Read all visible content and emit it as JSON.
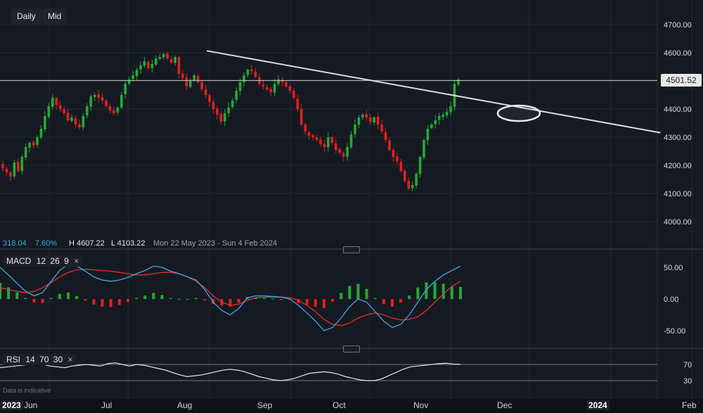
{
  "toolbar": {
    "timeframe": "Daily",
    "price_type": "Mid"
  },
  "price_axis": {
    "ticks": [
      "4700.00",
      "4600.00",
      "4500.00",
      "4400.00",
      "4300.00",
      "4200.00",
      "4100.00",
      "4000.00"
    ],
    "current_price": "4501.52"
  },
  "info_bar": {
    "value1": "318.04",
    "value2": "7.60%",
    "high": "H 4607.22",
    "low": "L 4103.22",
    "range": "Mon 22 May 2023 - Sun 4 Feb 2024"
  },
  "macd": {
    "label": "MACD",
    "params": [
      "12",
      "26",
      "9"
    ],
    "close": "×",
    "ticks": [
      "50.00",
      "0.00",
      "-50.00"
    ]
  },
  "rsi": {
    "label": "RSI",
    "params": [
      "14",
      "70",
      "30"
    ],
    "close": "×",
    "ticks": [
      "70",
      "30"
    ]
  },
  "disclaimer": "Data is indicative",
  "x_axis": {
    "labels": [
      "2023",
      "Jun",
      "Jul",
      "Aug",
      "Sep",
      "Oct",
      "Nov",
      "Dec",
      "2024",
      "Feb"
    ]
  },
  "colors": {
    "up": "#23a936",
    "down": "#e02020",
    "macd_line": "#3ba8e6",
    "signal_line": "#e03030",
    "trendline": "#d9d9d9",
    "background": "#151a22"
  },
  "chart_data": {
    "type": "candlestick",
    "x_range": [
      "2023-05-22",
      "2024-02-04"
    ],
    "y_range": [
      3950,
      4750
    ],
    "price_high": 4607.22,
    "price_low": 4103.22,
    "last_price": 4501.52,
    "closes": [
      4190,
      4175,
      4160,
      4210,
      4180,
      4230,
      4265,
      4280,
      4270,
      4300,
      4330,
      4375,
      4410,
      4440,
      4415,
      4400,
      4385,
      4360,
      4370,
      4345,
      4335,
      4375,
      4410,
      4445,
      4450,
      4440,
      4430,
      4410,
      4395,
      4385,
      4405,
      4450,
      4490,
      4505,
      4520,
      4540,
      4555,
      4570,
      4545,
      4560,
      4580,
      4585,
      4595,
      4580,
      4565,
      4585,
      4525,
      4510,
      4480,
      4500,
      4520,
      4495,
      4470,
      4450,
      4425,
      4400,
      4380,
      4355,
      4385,
      4405,
      4430,
      4465,
      4495,
      4520,
      4540,
      4535,
      4515,
      4490,
      4480,
      4470,
      4460,
      4490,
      4505,
      4495,
      4480,
      4465,
      4440,
      4400,
      4345,
      4320,
      4305,
      4300,
      4290,
      4275,
      4265,
      4300,
      4280,
      4255,
      4245,
      4230,
      4265,
      4310,
      4345,
      4370,
      4380,
      4370,
      4355,
      4370,
      4345,
      4320,
      4290,
      4255,
      4230,
      4215,
      4180,
      4145,
      4118,
      4130,
      4170,
      4230,
      4290,
      4330,
      4345,
      4360,
      4375,
      4380,
      4390,
      4410,
      4490,
      4505
    ],
    "trendline": {
      "start": [
        "2023-07-31",
        4607
      ],
      "end": [
        "2024-01-20",
        4316
      ]
    },
    "highlight_ellipse": {
      "center": [
        "2023-11-27",
        4385
      ]
    },
    "macd_series": {
      "macd": [
        50,
        38,
        25,
        12,
        5,
        10,
        28,
        45,
        55,
        52,
        44,
        35,
        30,
        28,
        30,
        34,
        40,
        45,
        52,
        50,
        44,
        40,
        35,
        30,
        15,
        -5,
        -18,
        -25,
        -15,
        2,
        5,
        5,
        4,
        3,
        0,
        -10,
        -22,
        -35,
        -50,
        -45,
        -30,
        -12,
        0,
        -5,
        -20,
        -35,
        -45,
        -40,
        -25,
        -5,
        15,
        28,
        38,
        45,
        52
      ],
      "signal": [
        18,
        15,
        12,
        10,
        12,
        18,
        26,
        35,
        42,
        46,
        47,
        46,
        45,
        44,
        42,
        40,
        38,
        38,
        40,
        42,
        42,
        40,
        35,
        28,
        18,
        5,
        -5,
        -10,
        -8,
        -2,
        2,
        3,
        3,
        3,
        2,
        -2,
        -10,
        -20,
        -32,
        -40,
        -42,
        -38,
        -30,
        -25,
        -22,
        -25,
        -30,
        -33,
        -32,
        -28,
        -18,
        -5,
        8,
        20,
        28
      ]
    },
    "rsi_series": [
      62,
      64,
      66,
      68,
      70,
      72,
      70,
      66,
      64,
      62,
      66,
      68,
      70,
      68,
      66,
      72,
      74,
      70,
      66,
      70,
      68,
      64,
      60,
      56,
      50,
      44,
      40,
      42,
      44,
      48,
      52,
      56,
      58,
      56,
      52,
      46,
      40,
      36,
      32,
      30,
      32,
      36,
      42,
      48,
      50,
      52,
      50,
      46,
      40,
      36,
      32,
      30,
      30,
      34,
      42,
      50,
      58,
      64,
      66,
      68,
      70,
      72,
      73,
      71,
      70
    ]
  }
}
